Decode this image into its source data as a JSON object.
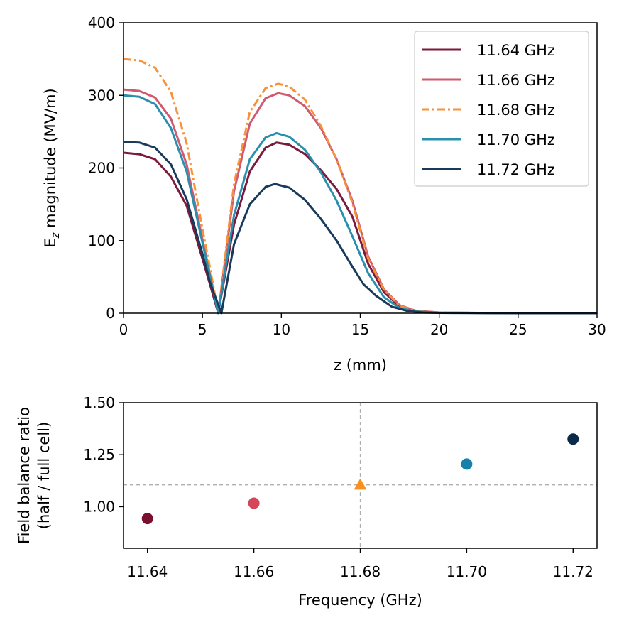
{
  "chart_data": [
    {
      "type": "line",
      "title": "",
      "xlabel": "z (mm)",
      "ylabel": "E_z magnitude (MV/m)",
      "ylabel_base": "E",
      "ylabel_sub": "z",
      "ylabel_rest": " magnitude (MV/m)",
      "xlim": [
        0,
        30
      ],
      "ylim": [
        0,
        400
      ],
      "xticks": [
        0,
        5,
        10,
        15,
        20,
        25,
        30
      ],
      "yticks": [
        0,
        100,
        200,
        300,
        400
      ],
      "grid": false,
      "legend_position": "top-right",
      "series": [
        {
          "name": "11.64 GHz",
          "color": "#7a1a3c",
          "dash": "solid",
          "x": [
            0,
            1,
            2,
            3,
            4,
            5,
            5.5,
            6,
            7,
            8,
            9,
            9.7,
            10.5,
            11.5,
            12.5,
            13.5,
            14.5,
            15.5,
            16.5,
            17.5,
            18.5,
            20,
            25,
            30
          ],
          "y": [
            221,
            219,
            212,
            188,
            148,
            75,
            38,
            0,
            122,
            195,
            228,
            235,
            232,
            219,
            197,
            171,
            133,
            68,
            29,
            9,
            3,
            0.8,
            0,
            0
          ]
        },
        {
          "name": "11.66 GHz",
          "color": "#d05a6e",
          "dash": "solid",
          "x": [
            0,
            1,
            2,
            3,
            4,
            5,
            5.5,
            6,
            7,
            8,
            9,
            9.8,
            10.5,
            11.5,
            12.5,
            13.5,
            14.5,
            15.5,
            16.5,
            17.5,
            18.5,
            20,
            25,
            30
          ],
          "y": [
            308,
            306,
            297,
            268,
            205,
            102,
            52,
            0,
            168,
            261,
            296,
            303,
            300,
            285,
            255,
            212,
            155,
            78,
            33,
            11,
            3.5,
            1,
            0,
            0
          ]
        },
        {
          "name": "11.68 GHz",
          "color": "#f7923a",
          "dash": "dashdot",
          "x": [
            0,
            1,
            2,
            3,
            4,
            5,
            5.5,
            6,
            7,
            8,
            9,
            9.8,
            10.5,
            11.5,
            12.5,
            13.5,
            14.5,
            15.5,
            16.5,
            17.5,
            18.5,
            20,
            25,
            30
          ],
          "y": [
            350,
            348,
            338,
            305,
            234,
            116,
            60,
            0,
            178,
            277,
            310,
            316,
            312,
            294,
            258,
            212,
            152,
            75,
            32,
            10,
            3.5,
            1,
            0,
            0
          ]
        },
        {
          "name": "11.70 GHz",
          "color": "#2a8fad",
          "dash": "solid",
          "x": [
            0,
            1,
            2,
            3,
            4,
            5,
            5.5,
            6,
            7,
            8,
            9,
            9.7,
            10.5,
            11.5,
            12.5,
            13.5,
            14.5,
            15.5,
            16.5,
            17.5,
            18.5,
            20,
            25,
            30
          ],
          "y": [
            300,
            298,
            288,
            255,
            195,
            97,
            49,
            0,
            135,
            212,
            242,
            248,
            243,
            225,
            194,
            155,
            106,
            55,
            22,
            7,
            2.5,
            0.7,
            0,
            0
          ]
        },
        {
          "name": "11.72 GHz",
          "color": "#1a3a5c",
          "dash": "solid",
          "x": [
            0,
            1,
            2,
            3,
            4,
            5,
            5.5,
            6.2,
            7,
            8,
            9,
            9.6,
            10.5,
            11.5,
            12.5,
            13.5,
            14.5,
            15.2,
            16,
            17,
            18,
            19,
            20,
            25,
            30
          ],
          "y": [
            236,
            235,
            228,
            205,
            157,
            82,
            41,
            0,
            95,
            150,
            174,
            178,
            173,
            156,
            130,
            100,
            64,
            40,
            24,
            9,
            3,
            1,
            0.5,
            0,
            0
          ]
        }
      ]
    },
    {
      "type": "scatter",
      "title": "",
      "xlabel": "Frequency (GHz)",
      "ylabel_line1": "Field balance ratio",
      "ylabel_line2": "(half / full cell)",
      "xlim": [
        11.6355,
        11.7245
      ],
      "ylim": [
        0.8,
        1.5
      ],
      "xticks": [
        11.64,
        11.66,
        11.68,
        11.7,
        11.72
      ],
      "xtick_labels": [
        "11.64",
        "11.66",
        "11.68",
        "11.70",
        "11.72"
      ],
      "yticks": [
        1.0,
        1.25,
        1.5
      ],
      "ytick_labels": [
        "1.00",
        "1.25",
        "1.50"
      ],
      "reference_hline": 1.105,
      "reference_vline": 11.68,
      "points": [
        {
          "x": 11.64,
          "y": 0.943,
          "color": "#7a0f30",
          "marker": "circle"
        },
        {
          "x": 11.66,
          "y": 1.017,
          "color": "#d4465a",
          "marker": "circle"
        },
        {
          "x": 11.68,
          "y": 1.105,
          "color": "#f7901e",
          "marker": "triangle"
        },
        {
          "x": 11.7,
          "y": 1.205,
          "color": "#1581a8",
          "marker": "circle"
        },
        {
          "x": 11.72,
          "y": 1.325,
          "color": "#0a2a4a",
          "marker": "circle"
        }
      ]
    }
  ]
}
